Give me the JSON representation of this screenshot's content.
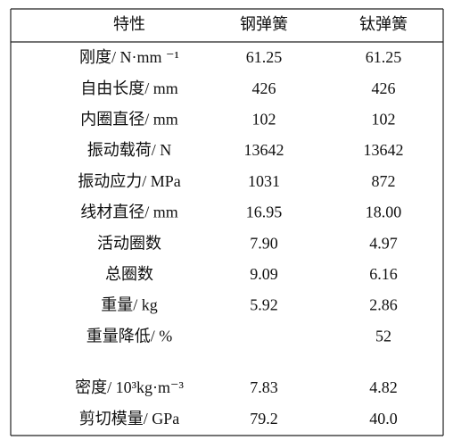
{
  "table": {
    "header": [
      "特性",
      "钢弹簧",
      "钛弹簧"
    ],
    "rows": [
      [
        "刚度/ N·mm ⁻¹",
        "61.25",
        "61.25"
      ],
      [
        "自由长度/ mm",
        "426",
        "426"
      ],
      [
        "内圈直径/ mm",
        "102",
        "102"
      ],
      [
        "振动载荷/ N",
        "13642",
        "13642"
      ],
      [
        "振动应力/ MPa",
        "1031",
        "872"
      ],
      [
        "线材直径/ mm",
        "16.95",
        "18.00"
      ],
      [
        "活动圈数",
        "7.90",
        "4.97"
      ],
      [
        "总圈数",
        "9.09",
        "6.16"
      ],
      [
        "重量/ kg",
        "5.92",
        "2.86"
      ],
      [
        "重量降低/  %",
        null,
        "52"
      ],
      [
        "密度/ 10³kg·m⁻³",
        "7.83",
        "4.82"
      ],
      [
        "剪切模量/ GPa",
        "79.2",
        "40.0"
      ]
    ]
  }
}
